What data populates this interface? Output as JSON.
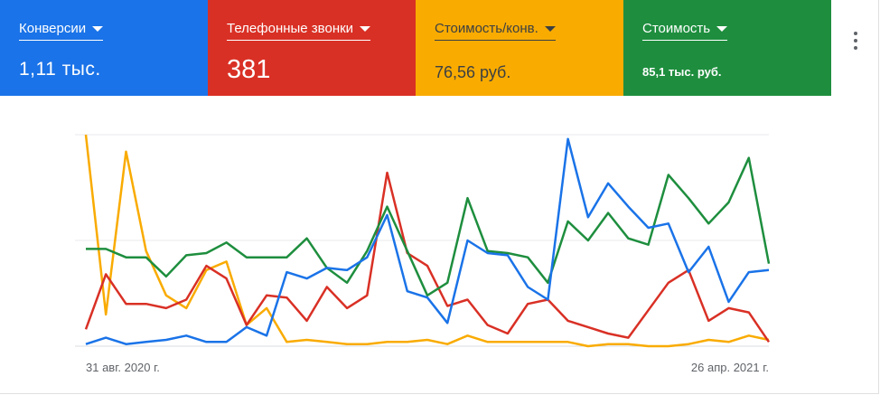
{
  "metrics": [
    {
      "label": "Конверсии",
      "value": "1,11 тыс.",
      "bg": "#1a73e8",
      "fg": "#ffffff"
    },
    {
      "label": "Телефонные звонки",
      "value": "381",
      "bg": "#d93025",
      "fg": "#ffffff"
    },
    {
      "label": "Стоимость/конв.",
      "value": "76,56 руб.",
      "bg": "#f9ab00",
      "fg": "#3c4043"
    },
    {
      "label": "Стоимость",
      "value": "85,1 тыс. руб.",
      "bg": "#1e8e3e",
      "fg": "#ffffff"
    }
  ],
  "menu": {
    "icon": "more-vert-icon"
  },
  "chart_data": {
    "type": "line",
    "x_labels": [
      "31 авг. 2020 г.",
      "26 апр. 2021 г."
    ],
    "ylim": [
      0,
      100
    ],
    "grid": true,
    "legend": "none",
    "series": [
      {
        "color": "#1a73e8",
        "values": [
          1,
          4,
          1,
          2,
          3,
          5,
          2,
          2,
          9,
          5,
          35,
          32,
          37,
          36,
          42,
          62,
          26,
          23,
          11,
          50,
          44,
          43,
          28,
          22,
          98,
          61,
          77,
          66,
          56,
          58,
          35,
          47,
          21,
          35,
          36
        ]
      },
      {
        "color": "#d93025",
        "values": [
          8,
          34,
          20,
          20,
          18,
          22,
          38,
          32,
          10,
          24,
          23,
          12,
          28,
          18,
          24,
          82,
          44,
          38,
          19,
          22,
          10,
          6,
          20,
          22,
          12,
          9,
          6,
          4,
          17,
          30,
          36,
          12,
          18,
          16,
          2
        ]
      },
      {
        "color": "#f9ab00",
        "values": [
          100,
          15,
          92,
          45,
          24,
          18,
          36,
          40,
          10,
          18,
          2,
          3,
          2,
          1,
          1,
          2,
          2,
          3,
          1,
          5,
          2,
          2,
          2,
          2,
          2,
          0,
          1,
          1,
          0,
          0,
          1,
          3,
          2,
          5,
          3
        ]
      },
      {
        "color": "#1e8e3e",
        "values": [
          46,
          46,
          42,
          42,
          33,
          43,
          44,
          49,
          42,
          42,
          42,
          51,
          37,
          30,
          45,
          66,
          45,
          24,
          30,
          70,
          45,
          44,
          42,
          30,
          59,
          50,
          63,
          51,
          48,
          81,
          70,
          58,
          68,
          89,
          39
        ]
      }
    ]
  }
}
